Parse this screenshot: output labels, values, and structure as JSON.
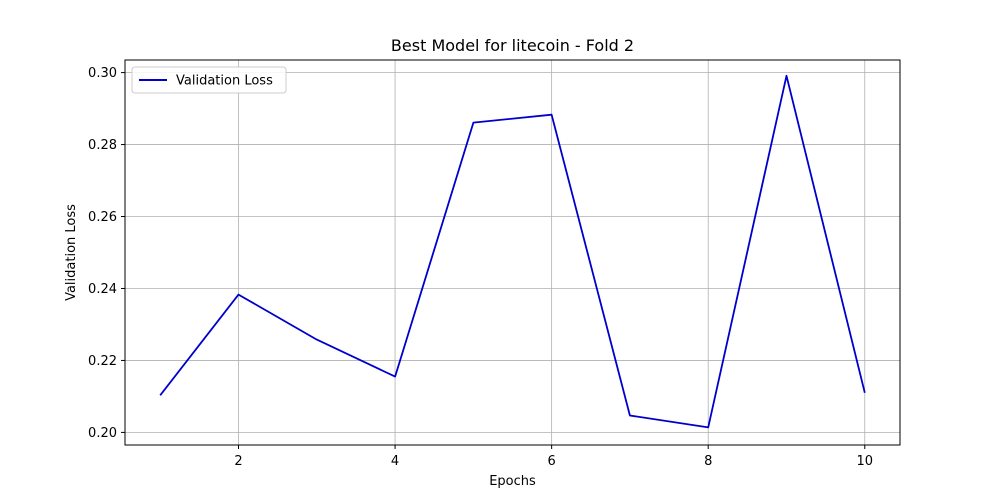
{
  "chart_data": {
    "type": "line",
    "title": "Best Model for litecoin - Fold 2",
    "xlabel": "Epochs",
    "ylabel": "Validation Loss",
    "xlim": [
      0.55,
      10.45
    ],
    "ylim": [
      0.1965,
      0.3035
    ],
    "xticks": [
      2,
      4,
      6,
      8,
      10
    ],
    "yticks": [
      0.2,
      0.22,
      0.24,
      0.26,
      0.28,
      0.3
    ],
    "ytick_labels": [
      "0.20",
      "0.22",
      "0.24",
      "0.26",
      "0.28",
      "0.30"
    ],
    "grid": true,
    "legend_position": "top-left",
    "series": [
      {
        "name": "Validation Loss",
        "color": "#0000cc",
        "x": [
          1,
          2,
          3,
          4,
          5,
          6,
          7,
          8,
          9,
          10
        ],
        "y": [
          0.2103,
          0.2383,
          0.2258,
          0.2155,
          0.2861,
          0.2883,
          0.2047,
          0.2014,
          0.2991,
          0.211
        ]
      }
    ]
  }
}
